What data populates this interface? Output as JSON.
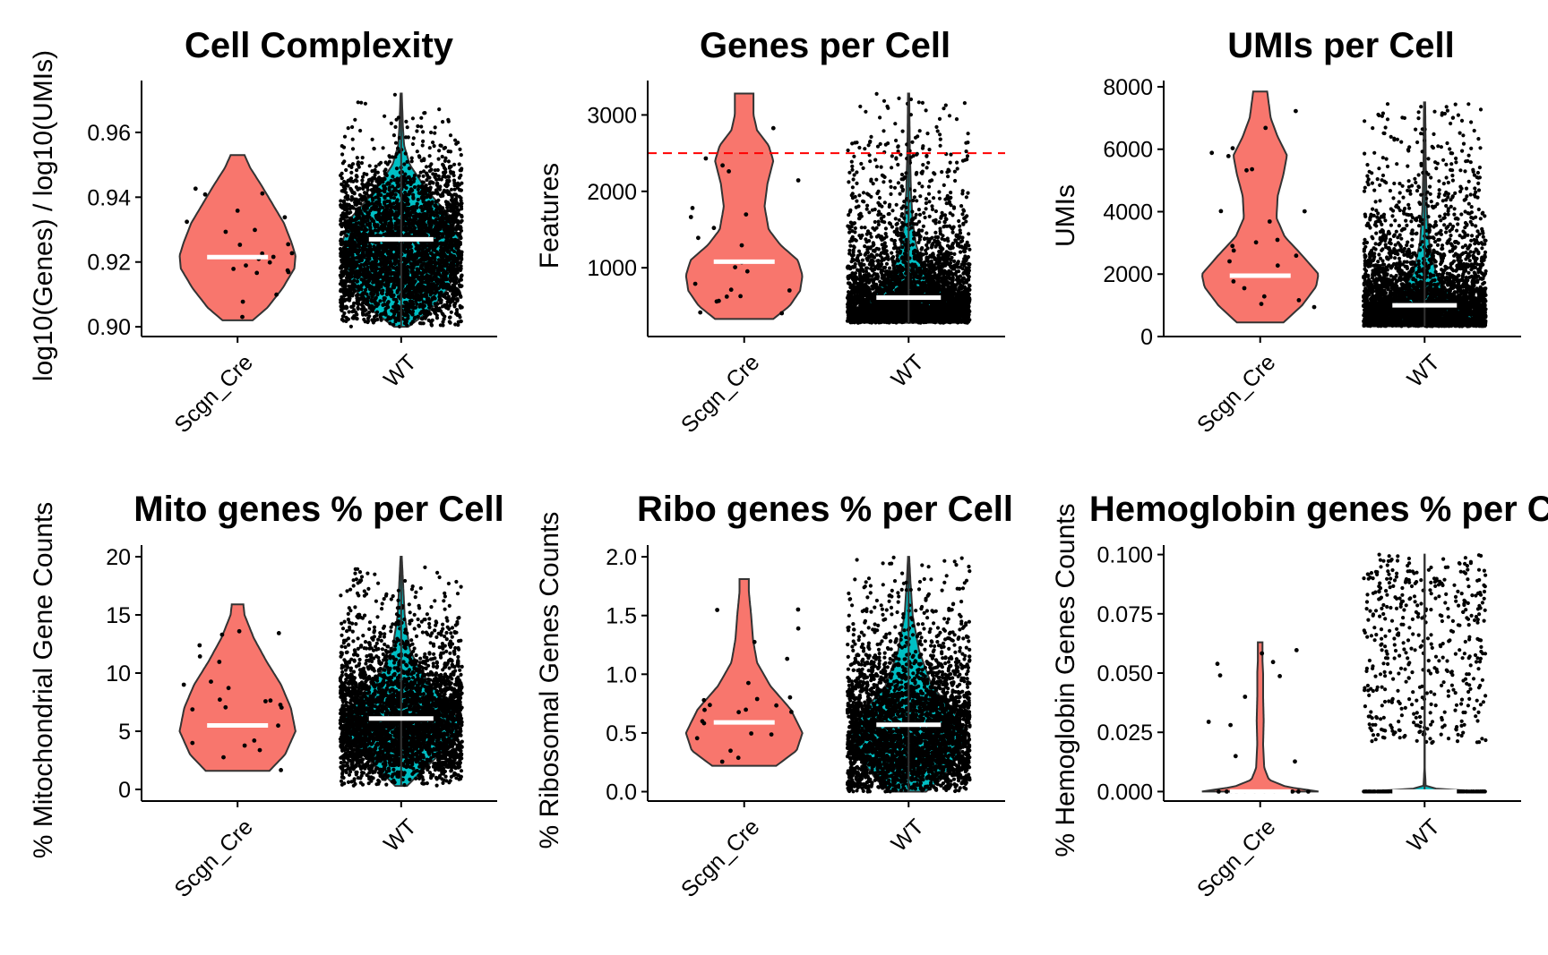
{
  "colors": {
    "scgn_cre": "#F8766D",
    "wt": "#00BFC4",
    "points": "#000000",
    "median": "#FFFFFF",
    "threshold": "#FF0000",
    "outline": "#333333",
    "axis": "#000000"
  },
  "chart_data": [
    {
      "type": "violin",
      "title": "Cell Complexity",
      "ylabel": "log10(Genes) / log10(UMIs)",
      "categories": [
        "Scgn_Cre",
        "WT"
      ],
      "ylim": [
        0.897,
        0.976
      ],
      "yticks": [
        0.9,
        0.92,
        0.94,
        0.96
      ],
      "ytick_labels": [
        "0.90",
        "0.92",
        "0.94",
        "0.96"
      ],
      "threshold": null,
      "series": [
        {
          "category": "Scgn_Cre",
          "min": 0.902,
          "max": 0.953,
          "median": 0.9215,
          "profile": [
            [
              0.902,
              0.26
            ],
            [
              0.906,
              0.52
            ],
            [
              0.912,
              0.78
            ],
            [
              0.918,
              0.98
            ],
            [
              0.922,
              1.0
            ],
            [
              0.926,
              0.93
            ],
            [
              0.932,
              0.8
            ],
            [
              0.938,
              0.6
            ],
            [
              0.944,
              0.4
            ],
            [
              0.949,
              0.22
            ],
            [
              0.953,
              0.12
            ]
          ],
          "n_points": 23
        },
        {
          "category": "WT",
          "min": 0.9,
          "max": 0.972,
          "median": 0.927,
          "profile": [
            [
              0.9,
              0.12
            ],
            [
              0.905,
              0.5
            ],
            [
              0.912,
              0.82
            ],
            [
              0.92,
              0.98
            ],
            [
              0.927,
              1.0
            ],
            [
              0.934,
              0.85
            ],
            [
              0.942,
              0.45
            ],
            [
              0.95,
              0.15
            ],
            [
              0.956,
              0.05
            ],
            [
              0.962,
              0.03
            ],
            [
              0.972,
              0.01
            ]
          ],
          "n_points": 3500
        }
      ]
    },
    {
      "type": "violin",
      "title": "Genes per Cell",
      "ylabel": "Features",
      "categories": [
        "Scgn_Cre",
        "WT"
      ],
      "ylim": [
        100,
        3450
      ],
      "yticks": [
        1000,
        2000,
        3000
      ],
      "ytick_labels": [
        "1000",
        "2000",
        "3000"
      ],
      "threshold": 2500,
      "series": [
        {
          "category": "Scgn_Cre",
          "min": 330,
          "max": 3280,
          "median": 1080,
          "profile": [
            [
              330,
              0.5
            ],
            [
              500,
              0.78
            ],
            [
              700,
              0.96
            ],
            [
              900,
              1.0
            ],
            [
              1100,
              0.92
            ],
            [
              1300,
              0.62
            ],
            [
              1500,
              0.42
            ],
            [
              1800,
              0.35
            ],
            [
              2100,
              0.4
            ],
            [
              2400,
              0.5
            ],
            [
              2600,
              0.42
            ],
            [
              2800,
              0.22
            ],
            [
              3000,
              0.16
            ],
            [
              3280,
              0.16
            ]
          ],
          "n_points": 23
        },
        {
          "category": "WT",
          "min": 280,
          "max": 3280,
          "median": 610,
          "profile": [
            [
              280,
              1.0
            ],
            [
              400,
              0.98
            ],
            [
              600,
              0.72
            ],
            [
              800,
              0.42
            ],
            [
              1000,
              0.25
            ],
            [
              1300,
              0.13
            ],
            [
              1600,
              0.07
            ],
            [
              2000,
              0.04
            ],
            [
              2600,
              0.02
            ],
            [
              3280,
              0.01
            ]
          ],
          "n_points": 3500
        }
      ]
    },
    {
      "type": "violin",
      "title": "UMIs per Cell",
      "ylabel": "UMIs",
      "categories": [
        "Scgn_Cre",
        "WT"
      ],
      "ylim": [
        0,
        8200
      ],
      "yticks": [
        0,
        2000,
        4000,
        6000,
        8000
      ],
      "ytick_labels": [
        "0",
        "2000",
        "4000",
        "6000",
        "8000"
      ],
      "threshold": null,
      "series": [
        {
          "category": "Scgn_Cre",
          "min": 450,
          "max": 7850,
          "median": 1950,
          "profile": [
            [
              450,
              0.4
            ],
            [
              1000,
              0.72
            ],
            [
              1600,
              0.96
            ],
            [
              2000,
              1.0
            ],
            [
              2600,
              0.72
            ],
            [
              3200,
              0.42
            ],
            [
              3800,
              0.28
            ],
            [
              4500,
              0.3
            ],
            [
              5200,
              0.4
            ],
            [
              5800,
              0.46
            ],
            [
              6400,
              0.3
            ],
            [
              7000,
              0.18
            ],
            [
              7850,
              0.12
            ]
          ],
          "n_points": 23
        },
        {
          "category": "WT",
          "min": 330,
          "max": 7500,
          "median": 1000,
          "profile": [
            [
              330,
              1.0
            ],
            [
              600,
              0.96
            ],
            [
              1000,
              0.68
            ],
            [
              1500,
              0.38
            ],
            [
              2000,
              0.2
            ],
            [
              3000,
              0.08
            ],
            [
              4000,
              0.04
            ],
            [
              5500,
              0.02
            ],
            [
              7500,
              0.01
            ]
          ],
          "n_points": 3500
        }
      ]
    },
    {
      "type": "violin",
      "title": "Mito genes % per Cell",
      "ylabel": "% Mitochondrial Gene Counts",
      "categories": [
        "Scgn_Cre",
        "WT"
      ],
      "ylim": [
        -1,
        21
      ],
      "yticks": [
        0,
        5,
        10,
        15,
        20
      ],
      "ytick_labels": [
        "0",
        "5",
        "10",
        "15",
        "20"
      ],
      "threshold": null,
      "series": [
        {
          "category": "Scgn_Cre",
          "min": 1.6,
          "max": 15.9,
          "median": 5.5,
          "profile": [
            [
              1.6,
              0.55
            ],
            [
              3,
              0.82
            ],
            [
              5,
              1.0
            ],
            [
              7,
              0.92
            ],
            [
              9,
              0.75
            ],
            [
              11,
              0.5
            ],
            [
              13,
              0.28
            ],
            [
              15,
              0.12
            ],
            [
              15.9,
              0.1
            ]
          ],
          "n_points": 23
        },
        {
          "category": "WT",
          "min": 0.3,
          "max": 20,
          "median": 6.1,
          "profile": [
            [
              0.3,
              0.1
            ],
            [
              2,
              0.45
            ],
            [
              4,
              0.88
            ],
            [
              6,
              1.0
            ],
            [
              8,
              0.7
            ],
            [
              10,
              0.35
            ],
            [
              12,
              0.15
            ],
            [
              15,
              0.06
            ],
            [
              18,
              0.03
            ],
            [
              20,
              0.01
            ]
          ],
          "n_points": 3500
        }
      ]
    },
    {
      "type": "violin",
      "title": "Ribo genes % per Cell",
      "ylabel": "% Ribosomal Genes Counts",
      "categories": [
        "Scgn_Cre",
        "WT"
      ],
      "ylim": [
        -0.08,
        2.1
      ],
      "yticks": [
        0.0,
        0.5,
        1.0,
        1.5,
        2.0
      ],
      "ytick_labels": [
        "0.0",
        "0.5",
        "1.0",
        "1.5",
        "2.0"
      ],
      "threshold": null,
      "series": [
        {
          "category": "Scgn_Cre",
          "min": 0.22,
          "max": 1.81,
          "median": 0.59,
          "profile": [
            [
              0.22,
              0.55
            ],
            [
              0.35,
              0.9
            ],
            [
              0.5,
              1.0
            ],
            [
              0.7,
              0.8
            ],
            [
              0.9,
              0.45
            ],
            [
              1.1,
              0.22
            ],
            [
              1.3,
              0.15
            ],
            [
              1.5,
              0.12
            ],
            [
              1.7,
              0.08
            ],
            [
              1.81,
              0.08
            ]
          ],
          "n_points": 23
        },
        {
          "category": "WT",
          "min": 0.0,
          "max": 2.0,
          "median": 0.57,
          "profile": [
            [
              0.0,
              0.3
            ],
            [
              0.1,
              0.55
            ],
            [
              0.3,
              0.85
            ],
            [
              0.5,
              1.0
            ],
            [
              0.7,
              0.75
            ],
            [
              0.9,
              0.4
            ],
            [
              1.2,
              0.18
            ],
            [
              1.5,
              0.07
            ],
            [
              1.8,
              0.03
            ],
            [
              2.0,
              0.01
            ]
          ],
          "n_points": 3500
        }
      ]
    },
    {
      "type": "violin",
      "title": "Hemoglobin genes % per Cell",
      "ylabel": "% Hemoglobin Genes Counts",
      "categories": [
        "Scgn_Cre",
        "WT"
      ],
      "ylim": [
        -0.004,
        0.104
      ],
      "yticks": [
        0.0,
        0.025,
        0.05,
        0.075,
        0.1
      ],
      "ytick_labels": [
        "0.000",
        "0.025",
        "0.050",
        "0.075",
        "0.100"
      ],
      "threshold": null,
      "series": [
        {
          "category": "Scgn_Cre",
          "min": 0.0,
          "max": 0.063,
          "median": 0.0,
          "profile": [
            [
              0.0,
              1.0
            ],
            [
              0.002,
              0.45
            ],
            [
              0.005,
              0.15
            ],
            [
              0.01,
              0.07
            ],
            [
              0.02,
              0.05
            ],
            [
              0.03,
              0.06
            ],
            [
              0.04,
              0.05
            ],
            [
              0.05,
              0.05
            ],
            [
              0.055,
              0.04
            ],
            [
              0.063,
              0.04
            ]
          ],
          "n_points": 23
        },
        {
          "category": "WT",
          "min": 0.0,
          "max": 0.1,
          "median": 0.0,
          "profile": [
            [
              0.0,
              1.0
            ],
            [
              0.0008,
              0.3
            ],
            [
              0.002,
              0.02
            ],
            [
              0.01,
              0.003
            ],
            [
              0.05,
              0.003
            ],
            [
              0.1,
              0.002
            ]
          ],
          "n_points": 700
        }
      ]
    }
  ]
}
